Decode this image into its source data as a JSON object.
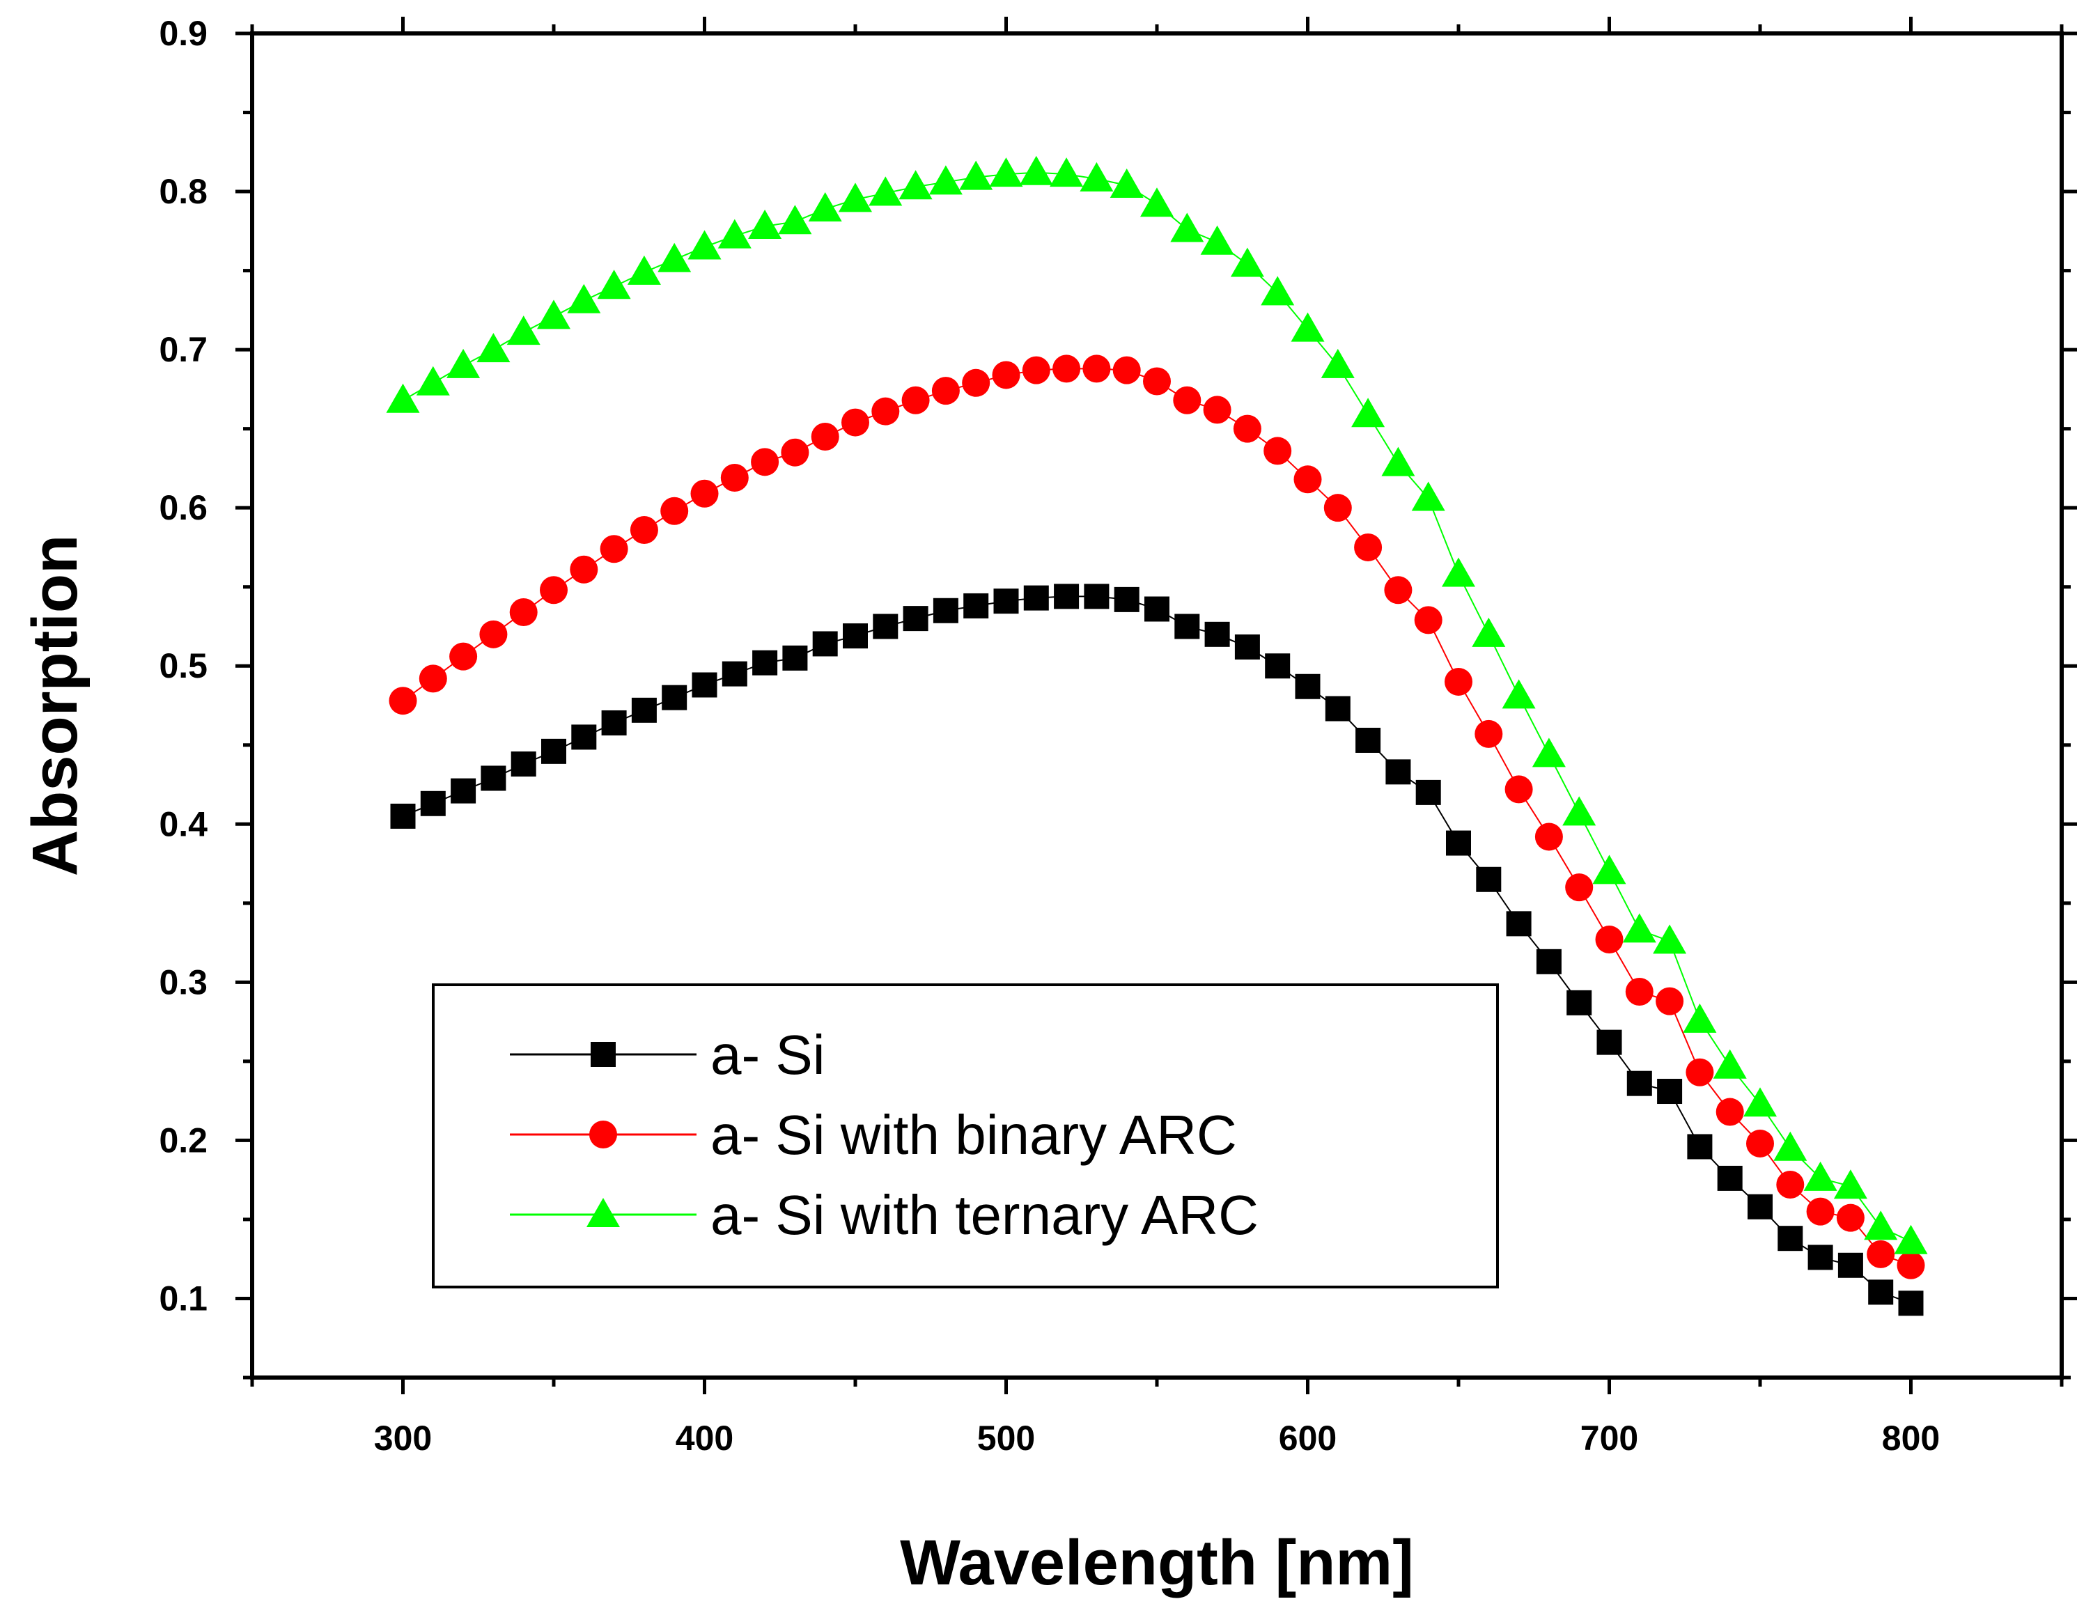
{
  "chart_data": {
    "type": "line",
    "title": "",
    "xlabel": "Wavelength [nm]",
    "ylabel": "Absorption",
    "xlim": [
      250,
      850
    ],
    "ylim": [
      0.05,
      0.9
    ],
    "xticks": [
      300,
      400,
      500,
      600,
      700,
      800
    ],
    "yticks": [
      0.1,
      0.2,
      0.3,
      0.4,
      0.5,
      0.6,
      0.7,
      0.8,
      0.9
    ],
    "grid": false,
    "legend_position": "bottom-left",
    "x": [
      300,
      310,
      320,
      330,
      340,
      350,
      360,
      370,
      380,
      390,
      400,
      410,
      420,
      430,
      440,
      450,
      460,
      470,
      480,
      490,
      500,
      510,
      520,
      530,
      540,
      550,
      560,
      570,
      580,
      590,
      600,
      610,
      620,
      630,
      640,
      650,
      660,
      670,
      680,
      690,
      700,
      710,
      720,
      730,
      740,
      750,
      760,
      770,
      780,
      790,
      800
    ],
    "series": [
      {
        "name": "a- Si",
        "marker": "square",
        "color": "#000000",
        "values": [
          0.405,
          0.413,
          0.421,
          0.429,
          0.438,
          0.446,
          0.455,
          0.464,
          0.472,
          0.48,
          0.488,
          0.495,
          0.502,
          0.505,
          0.514,
          0.519,
          0.525,
          0.53,
          0.535,
          0.538,
          0.541,
          0.543,
          0.544,
          0.544,
          0.542,
          0.536,
          0.525,
          0.52,
          0.512,
          0.5,
          0.487,
          0.473,
          0.453,
          0.433,
          0.42,
          0.388,
          0.365,
          0.337,
          0.313,
          0.287,
          0.262,
          0.236,
          0.231,
          0.196,
          0.176,
          0.158,
          0.138,
          0.126,
          0.121,
          0.104,
          0.097
        ]
      },
      {
        "name": "a- Si with binary ARC",
        "marker": "circle",
        "color": "#ff0000",
        "values": [
          0.478,
          0.492,
          0.506,
          0.52,
          0.534,
          0.548,
          0.561,
          0.574,
          0.586,
          0.598,
          0.609,
          0.619,
          0.629,
          0.635,
          0.645,
          0.654,
          0.661,
          0.668,
          0.674,
          0.679,
          0.684,
          0.687,
          0.688,
          0.688,
          0.687,
          0.68,
          0.668,
          0.662,
          0.65,
          0.636,
          0.618,
          0.6,
          0.575,
          0.548,
          0.529,
          0.49,
          0.457,
          0.422,
          0.392,
          0.36,
          0.327,
          0.294,
          0.288,
          0.243,
          0.218,
          0.198,
          0.172,
          0.155,
          0.151,
          0.128,
          0.121
        ]
      },
      {
        "name": "a- Si with ternary ARC",
        "marker": "triangle",
        "color": "#00ff00",
        "values": [
          0.668,
          0.679,
          0.69,
          0.7,
          0.711,
          0.721,
          0.731,
          0.74,
          0.749,
          0.757,
          0.765,
          0.772,
          0.778,
          0.781,
          0.789,
          0.795,
          0.799,
          0.803,
          0.806,
          0.809,
          0.811,
          0.812,
          0.811,
          0.808,
          0.804,
          0.792,
          0.776,
          0.768,
          0.754,
          0.736,
          0.713,
          0.69,
          0.659,
          0.628,
          0.606,
          0.558,
          0.52,
          0.481,
          0.444,
          0.407,
          0.37,
          0.333,
          0.326,
          0.276,
          0.247,
          0.223,
          0.195,
          0.176,
          0.171,
          0.145,
          0.136
        ]
      }
    ]
  }
}
